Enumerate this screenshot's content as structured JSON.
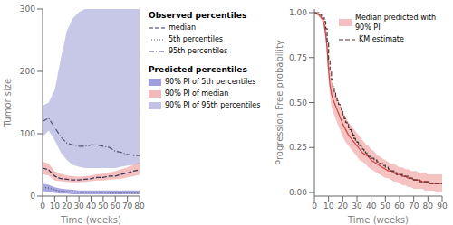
{
  "chart_data": [
    {
      "type": "line",
      "xlabel": "Time (weeks)",
      "ylabel": "Tumor size",
      "xlim": [
        0,
        80
      ],
      "ylim": [
        0,
        300
      ],
      "xticks": [
        0,
        10,
        20,
        30,
        40,
        50,
        60,
        70,
        80
      ],
      "yticks": [
        0,
        100,
        200,
        300
      ],
      "legend": "right",
      "x": [
        0,
        5,
        10,
        15,
        20,
        25,
        30,
        35,
        40,
        45,
        50,
        55,
        60,
        65,
        70,
        75,
        80
      ],
      "series": [
        {
          "name": "median",
          "group": "Observed percentiles",
          "type": "line",
          "line_style": "dashed",
          "color": "#333355",
          "values": [
            45,
            42,
            32,
            28,
            27,
            26,
            26,
            27,
            28,
            30,
            30,
            32,
            32,
            35,
            37,
            40,
            42
          ]
        },
        {
          "name": "5th percentiles",
          "group": "Observed percentiles",
          "type": "line",
          "line_style": "dotted",
          "color": "#555577",
          "values": [
            14,
            13,
            10,
            8,
            7,
            7,
            6,
            6,
            6,
            6,
            6,
            5,
            5,
            5,
            5,
            5,
            5
          ]
        },
        {
          "name": "95th percentiles",
          "group": "Observed percentiles",
          "type": "line",
          "line_style": "dashdot",
          "color": "#555577",
          "values": [
            120,
            125,
            110,
            95,
            85,
            82,
            80,
            80,
            82,
            82,
            80,
            78,
            72,
            70,
            67,
            65,
            65
          ]
        },
        {
          "name": "90% PI of 5th percentiles",
          "group": "Predicted percentiles",
          "type": "band",
          "color": "#5050c0",
          "lower": [
            8,
            7,
            5,
            4,
            4,
            3,
            3,
            3,
            3,
            3,
            3,
            3,
            3,
            3,
            3,
            3,
            3
          ],
          "upper": [
            20,
            18,
            14,
            12,
            11,
            10,
            9,
            9,
            9,
            9,
            9,
            9,
            9,
            9,
            9,
            9,
            9
          ]
        },
        {
          "name": "90% PI of median",
          "group": "Predicted percentiles",
          "type": "band",
          "color": "#e88080",
          "lower": [
            35,
            33,
            25,
            24,
            23,
            22,
            22,
            23,
            24,
            25,
            25,
            26,
            27,
            28,
            30,
            32,
            34
          ],
          "upper": [
            55,
            52,
            40,
            36,
            33,
            32,
            31,
            32,
            33,
            35,
            36,
            38,
            40,
            43,
            46,
            50,
            54
          ]
        },
        {
          "name": "90% PI of 95th percentiles",
          "group": "Predicted percentiles",
          "type": "band",
          "color": "#9090d0",
          "lower": [
            95,
            105,
            90,
            70,
            58,
            50,
            47,
            45,
            45,
            45,
            45,
            45,
            45,
            47,
            49,
            50,
            52
          ],
          "upper": [
            145,
            150,
            170,
            220,
            265,
            285,
            295,
            300,
            300,
            300,
            300,
            300,
            300,
            300,
            300,
            300,
            300
          ]
        }
      ]
    },
    {
      "type": "line",
      "xlabel": "Time (weeks)",
      "ylabel": "Progression Free probability",
      "xlim": [
        0,
        90
      ],
      "ylim": [
        -0.02,
        1.02
      ],
      "xticks": [
        0,
        10,
        20,
        30,
        40,
        50,
        60,
        70,
        80,
        90
      ],
      "yticks": [
        {
          "value": 0,
          "label": "0.00"
        },
        {
          "value": 0.25,
          "label": "0.25"
        },
        {
          "value": 0.5,
          "label": "0.50"
        },
        {
          "value": 0.75,
          "label": "0.75"
        },
        {
          "value": 1,
          "label": "1.00"
        }
      ],
      "legend": "upper right",
      "series": [
        {
          "name": "Median predicted with 90% PI",
          "type": "band",
          "line_style": "solid",
          "color": "#cc4444",
          "band_color": "#ee8888",
          "x": [
            0,
            1,
            2,
            3,
            4,
            5,
            6,
            7,
            8,
            9,
            10,
            11,
            12,
            13,
            14,
            15,
            16,
            17,
            18,
            19,
            20,
            22,
            24,
            26,
            28,
            30,
            32,
            34,
            36,
            38,
            40,
            42,
            44,
            46,
            48,
            50,
            52,
            54,
            56,
            58,
            60,
            62,
            64,
            66,
            68,
            70,
            72,
            74,
            76,
            78,
            80,
            82,
            84,
            86,
            88,
            90
          ],
          "values": [
            1.0,
            1.0,
            0.99,
            0.99,
            0.98,
            0.97,
            0.96,
            0.93,
            0.88,
            0.8,
            0.68,
            0.6,
            0.55,
            0.52,
            0.5,
            0.48,
            0.46,
            0.44,
            0.42,
            0.4,
            0.38,
            0.35,
            0.32,
            0.3,
            0.28,
            0.26,
            0.24,
            0.22,
            0.21,
            0.2,
            0.18,
            0.17,
            0.16,
            0.15,
            0.14,
            0.13,
            0.12,
            0.12,
            0.11,
            0.1,
            0.1,
            0.09,
            0.09,
            0.08,
            0.08,
            0.07,
            0.07,
            0.07,
            0.06,
            0.06,
            0.06,
            0.05,
            0.05,
            0.05,
            0.05,
            0.05
          ],
          "lower": [
            1.0,
            1.0,
            0.99,
            0.98,
            0.97,
            0.96,
            0.94,
            0.9,
            0.84,
            0.74,
            0.62,
            0.54,
            0.48,
            0.45,
            0.43,
            0.41,
            0.39,
            0.37,
            0.35,
            0.33,
            0.31,
            0.28,
            0.26,
            0.24,
            0.22,
            0.2,
            0.18,
            0.17,
            0.16,
            0.14,
            0.13,
            0.12,
            0.11,
            0.1,
            0.09,
            0.08,
            0.08,
            0.07,
            0.06,
            0.06,
            0.05,
            0.04,
            0.04,
            0.03,
            0.03,
            0.02,
            0.02,
            0.02,
            0.02,
            0.01,
            0.01,
            0.01,
            0.01,
            0.0,
            0.0,
            0.0
          ],
          "upper": [
            1.0,
            1.0,
            1.0,
            0.99,
            0.99,
            0.98,
            0.97,
            0.96,
            0.93,
            0.87,
            0.76,
            0.68,
            0.63,
            0.59,
            0.57,
            0.55,
            0.53,
            0.51,
            0.49,
            0.47,
            0.45,
            0.42,
            0.39,
            0.37,
            0.35,
            0.33,
            0.31,
            0.29,
            0.27,
            0.26,
            0.24,
            0.23,
            0.21,
            0.2,
            0.19,
            0.18,
            0.17,
            0.16,
            0.16,
            0.15,
            0.14,
            0.14,
            0.13,
            0.13,
            0.12,
            0.12,
            0.12,
            0.11,
            0.11,
            0.11,
            0.1,
            0.1,
            0.1,
            0.1,
            0.1,
            0.1
          ]
        },
        {
          "name": "KM estimate",
          "type": "step",
          "line_style": "dashed",
          "color": "#553333",
          "x": [
            0,
            1,
            2,
            3,
            4,
            5,
            6,
            7,
            8,
            9,
            10,
            11,
            12,
            13,
            14,
            15,
            16,
            17,
            18,
            19,
            20,
            21,
            22,
            23,
            24,
            25,
            26,
            27,
            28,
            29,
            30,
            31,
            32,
            33,
            34,
            35,
            36,
            37,
            38,
            40,
            42,
            44,
            46,
            48,
            50,
            52,
            54,
            56,
            58,
            60,
            62,
            64,
            66,
            68,
            70,
            72,
            74,
            76,
            78,
            80,
            82,
            84,
            86,
            88,
            90
          ],
          "values": [
            1.0,
            1.0,
            1.0,
            0.99,
            0.99,
            0.98,
            0.97,
            0.95,
            0.91,
            0.84,
            0.74,
            0.68,
            0.63,
            0.59,
            0.56,
            0.53,
            0.51,
            0.49,
            0.47,
            0.45,
            0.43,
            0.41,
            0.39,
            0.38,
            0.36,
            0.35,
            0.33,
            0.32,
            0.3,
            0.29,
            0.28,
            0.27,
            0.26,
            0.25,
            0.24,
            0.23,
            0.22,
            0.21,
            0.2,
            0.19,
            0.18,
            0.17,
            0.16,
            0.15,
            0.14,
            0.13,
            0.12,
            0.11,
            0.1,
            0.1,
            0.09,
            0.09,
            0.08,
            0.08,
            0.07,
            0.07,
            0.06,
            0.06,
            0.06,
            0.05,
            0.05,
            0.05,
            0.05,
            0.05,
            0.05
          ]
        }
      ]
    }
  ]
}
